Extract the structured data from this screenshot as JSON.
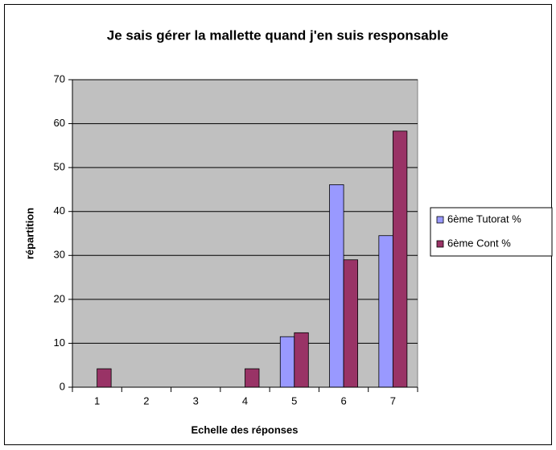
{
  "chart_data": {
    "type": "bar",
    "title": "Je sais gérer la mallette quand j'en suis responsable",
    "x_label": "Echelle des réponses",
    "y_label": "répartition",
    "categories": [
      "1",
      "2",
      "3",
      "4",
      "5",
      "6",
      "7"
    ],
    "series": [
      {
        "name": "6ème Tutorat %",
        "color": "#9999ff",
        "values": [
          0,
          0,
          0,
          0,
          11.5,
          46.1,
          34.5
        ]
      },
      {
        "name": "6ème Cont %",
        "color": "#993366",
        "values": [
          4.2,
          0,
          0,
          4.2,
          12.4,
          29,
          58.3
        ]
      }
    ],
    "ylim": [
      0,
      70
    ],
    "yticks": [
      0,
      10,
      20,
      30,
      40,
      50,
      60,
      70
    ],
    "grid": true,
    "legend": "right"
  }
}
